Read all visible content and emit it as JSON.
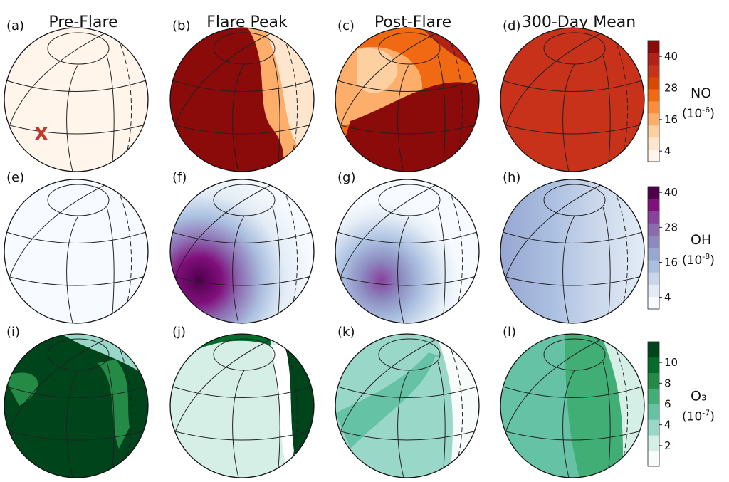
{
  "columns": [
    "Pre-Flare",
    "Flare Peak",
    "Post-Flare",
    "300-Day Mean"
  ],
  "marker": "X",
  "chart_data": {
    "type": "heatmap",
    "panels": [
      {
        "label": "(a)",
        "species": "NO",
        "phase": "Pre-Flare",
        "level": 0.06,
        "features": [
          "uniform-low"
        ]
      },
      {
        "label": "(b)",
        "species": "NO",
        "phase": "Flare Peak",
        "level": 0.92,
        "features": [
          "saturated-dayside",
          "low-limb-right"
        ]
      },
      {
        "label": "(c)",
        "species": "NO",
        "phase": "Post-Flare",
        "level": 0.55,
        "features": [
          "patchy-mixed"
        ]
      },
      {
        "label": "(d)",
        "species": "NO",
        "phase": "300-Day Mean",
        "level": 0.78,
        "features": [
          "uniform-high"
        ]
      },
      {
        "label": "(e)",
        "species": "OH",
        "phase": "Pre-Flare",
        "level": 0.02,
        "features": [
          "uniform-low"
        ]
      },
      {
        "label": "(f)",
        "species": "OH",
        "phase": "Flare Peak",
        "level": 0.95,
        "features": [
          "peak-lower-left"
        ]
      },
      {
        "label": "(g)",
        "species": "OH",
        "phase": "Post-Flare",
        "level": 0.55,
        "features": [
          "peak-lower-left-small"
        ]
      },
      {
        "label": "(h)",
        "species": "OH",
        "phase": "300-Day Mean",
        "level": 0.35,
        "features": [
          "gradient-left"
        ]
      },
      {
        "label": "(i)",
        "species": "O3",
        "phase": "Pre-Flare",
        "level": 0.92,
        "features": [
          "uniform-high",
          "mid-patches"
        ]
      },
      {
        "label": "(j)",
        "species": "O3",
        "phase": "Flare Peak",
        "level": 0.15,
        "features": [
          "uniform-low",
          "high-limb-right"
        ]
      },
      {
        "label": "(k)",
        "species": "O3",
        "phase": "Post-Flare",
        "level": 0.35,
        "features": [
          "diagonal-band"
        ]
      },
      {
        "label": "(l)",
        "species": "O3",
        "phase": "300-Day Mean",
        "level": 0.5,
        "features": [
          "mid-left-low-right"
        ]
      }
    ],
    "colorbars": [
      {
        "name": "NO",
        "unit_base": "(10",
        "unit_exp": "-6",
        "unit_close": ")",
        "ticks": [
          4,
          16,
          28,
          40
        ],
        "range": [
          0,
          46
        ],
        "colors": [
          "#fff5eb",
          "#fee6ce",
          "#fdd0a2",
          "#fdae6b",
          "#fd8d3c",
          "#f16913",
          "#d94801",
          "#c8321a",
          "#b22216",
          "#8b0a0a"
        ]
      },
      {
        "name": "OH",
        "unit_base": "(10",
        "unit_exp": "-8",
        "unit_close": ")",
        "ticks": [
          4,
          16,
          28,
          40
        ],
        "range": [
          0,
          42
        ],
        "colors": [
          "#f7fbff",
          "#e3ecf6",
          "#c9d6ea",
          "#aabfe0",
          "#98a6d2",
          "#8c8bc0",
          "#8c6bb1",
          "#88419d",
          "#810f7c",
          "#4d004b"
        ]
      },
      {
        "name": "O₃",
        "unit_base": "(10",
        "unit_exp": "-7",
        "unit_close": ")",
        "ticks": [
          2,
          4,
          6,
          8,
          10
        ],
        "range": [
          0,
          12
        ],
        "colors": [
          "#f7fcfb",
          "#d5eee6",
          "#99d8c9",
          "#66c2a4",
          "#41ae76",
          "#238b45",
          "#006d2c",
          "#00441b"
        ]
      }
    ]
  }
}
